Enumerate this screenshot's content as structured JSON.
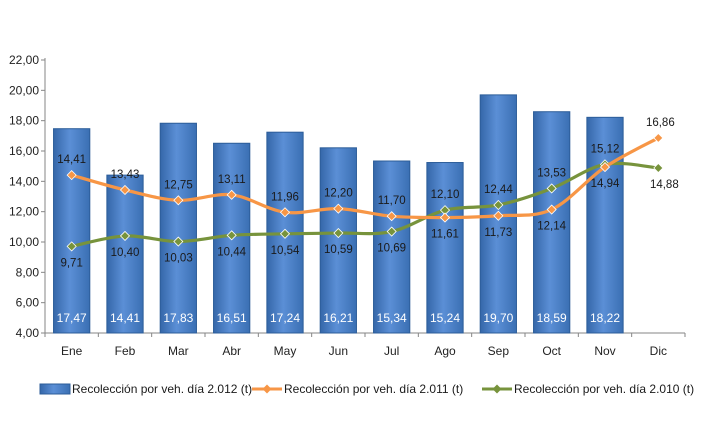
{
  "chart_data": {
    "type": "bar",
    "categories": [
      "Ene",
      "Feb",
      "Mar",
      "Abr",
      "May",
      "Jun",
      "Jul",
      "Ago",
      "Sep",
      "Oct",
      "Nov",
      "Dic"
    ],
    "ylim": [
      4,
      22
    ],
    "yticks": [
      "4,00",
      "6,00",
      "8,00",
      "10,00",
      "12,00",
      "14,00",
      "16,00",
      "18,00",
      "20,00",
      "22,00"
    ],
    "grid": false,
    "legend_position": "bottom",
    "series": [
      {
        "name": "Recolección por veh. día 2.012 (t)",
        "type": "bar",
        "color": "#4a7ebb",
        "values": [
          17.47,
          14.41,
          17.83,
          16.51,
          17.24,
          16.21,
          15.34,
          15.24,
          19.7,
          18.59,
          18.22,
          null
        ],
        "labels": [
          "17,47",
          "14,41",
          "17,83",
          "16,51",
          "17,24",
          "16,21",
          "15,34",
          "15,24",
          "19,70",
          "18,59",
          "18,22",
          ""
        ]
      },
      {
        "name": "Recolección por veh. día 2.011 (t)",
        "type": "line",
        "color": "#f79646",
        "values": [
          14.41,
          13.43,
          12.75,
          13.11,
          11.96,
          12.2,
          11.7,
          11.61,
          11.73,
          12.14,
          14.94,
          16.86
        ],
        "labels": [
          "14,41",
          "13,43",
          "12,75",
          "13,11",
          "11,96",
          "12,20",
          "11,70",
          "11,61",
          "11,73",
          "12,14",
          "14,94",
          "16,86"
        ]
      },
      {
        "name": "Recolección por veh. día 2.010 (t)",
        "type": "line",
        "color": "#77933c",
        "values": [
          9.71,
          10.4,
          10.03,
          10.44,
          10.54,
          10.59,
          10.69,
          12.1,
          12.44,
          13.53,
          15.12,
          14.88
        ],
        "labels": [
          "9,71",
          "10,40",
          "10,03",
          "10,44",
          "10,54",
          "10,59",
          "10,69",
          "12,10",
          "12,44",
          "13,53",
          "15,12",
          "14,88"
        ]
      }
    ]
  }
}
